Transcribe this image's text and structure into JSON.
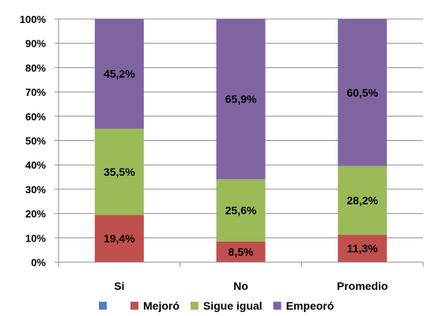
{
  "chart_data": {
    "type": "bar",
    "stacked": true,
    "percent": true,
    "categories": [
      "Si",
      "No",
      "Promedio"
    ],
    "series": [
      {
        "name": "Mejoró",
        "color": "#C0504D",
        "values": [
          19.4,
          8.5,
          11.3
        ],
        "labels": [
          "19,4%",
          "8,5%",
          "11,3%"
        ]
      },
      {
        "name": "Sigue igual",
        "color": "#9BBB59",
        "values": [
          35.5,
          25.6,
          28.2
        ],
        "labels": [
          "35,5%",
          "25,6%",
          "28,2%"
        ]
      },
      {
        "name": "Empeoró",
        "color": "#8064A2",
        "values": [
          45.2,
          65.9,
          60.5
        ],
        "labels": [
          "45,2%",
          "65,9%",
          "60,5%"
        ]
      }
    ],
    "legend_extra_marker_color": "#4F81BD",
    "ylim": [
      0,
      100
    ],
    "yticks": [
      "0%",
      "10%",
      "20%",
      "30%",
      "40%",
      "50%",
      "60%",
      "70%",
      "80%",
      "90%",
      "100%"
    ],
    "grid": true,
    "legend": "bottom"
  }
}
